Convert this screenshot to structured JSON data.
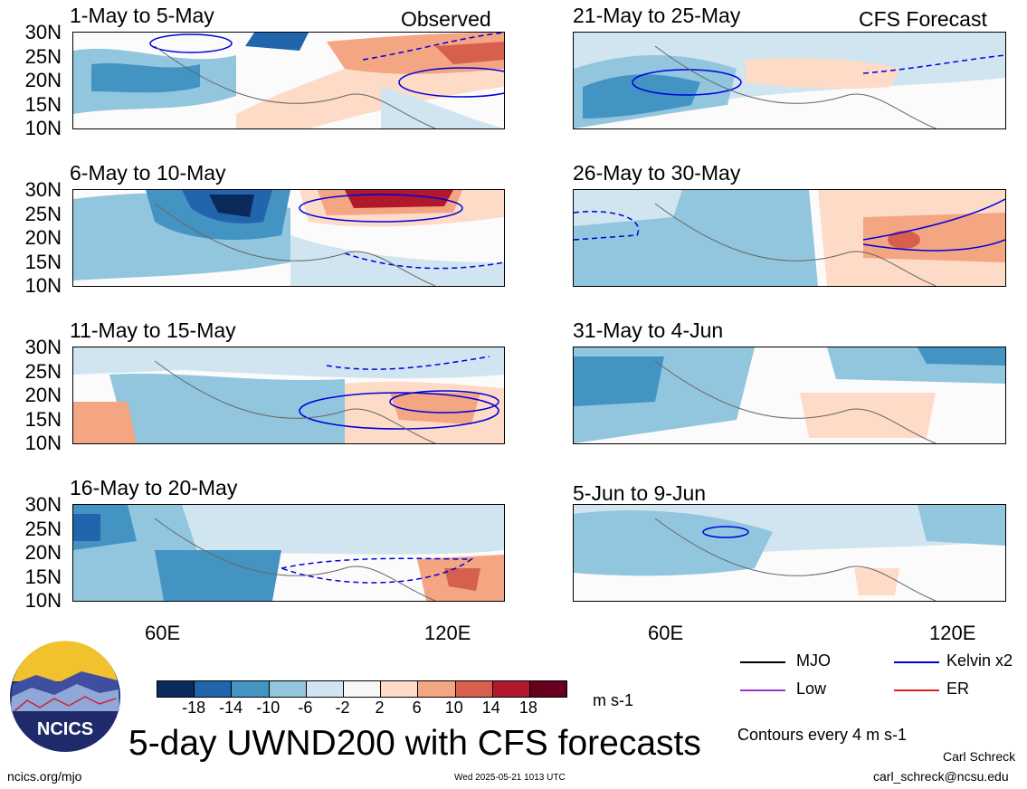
{
  "panels": [
    {
      "title": "1-May to 5-May",
      "corner": "Observed"
    },
    {
      "title": "21-May to 25-May",
      "corner": "CFS Forecast"
    },
    {
      "title": "6-May to 10-May",
      "corner": ""
    },
    {
      "title": "26-May to 30-May",
      "corner": ""
    },
    {
      "title": "11-May to 15-May",
      "corner": ""
    },
    {
      "title": "31-May to 4-Jun",
      "corner": ""
    },
    {
      "title": "16-May to 20-May",
      "corner": ""
    },
    {
      "title": "5-Jun to 9-Jun",
      "corner": ""
    }
  ],
  "lat_labels": [
    "30N",
    "25N",
    "20N",
    "15N",
    "10N"
  ],
  "lon_labels": [
    "60E",
    "120E"
  ],
  "colorbar": {
    "colors": [
      "#0b2a5b",
      "#2166ac",
      "#4393c3",
      "#92c5de",
      "#d1e5f0",
      "#f7f7f7",
      "#fddbc7",
      "#f4a582",
      "#d6604d",
      "#b2182b",
      "#67001f"
    ],
    "ticks": [
      "-18",
      "-14",
      "-10",
      "-6",
      "-2",
      "2",
      "6",
      "10",
      "14",
      "18"
    ],
    "units": "m s-1"
  },
  "legend": [
    {
      "label": "MJO",
      "color": "#000000"
    },
    {
      "label": "Kelvin x2",
      "color": "#0000dd"
    },
    {
      "label": "Low",
      "color": "#9933cc"
    },
    {
      "label": "ER",
      "color": "#dd2222"
    }
  ],
  "contours_note": "Contours every 4 m s-1",
  "main_title": "5-day UWND200 with CFS forecasts",
  "logo_text": "NCICS",
  "footer": {
    "url": "ncics.org/mjo",
    "timestamp": "Wed 2025-05-21 1013 UTC",
    "author": "Carl Schreck",
    "email": "carl_schreck@ncsu.edu"
  }
}
